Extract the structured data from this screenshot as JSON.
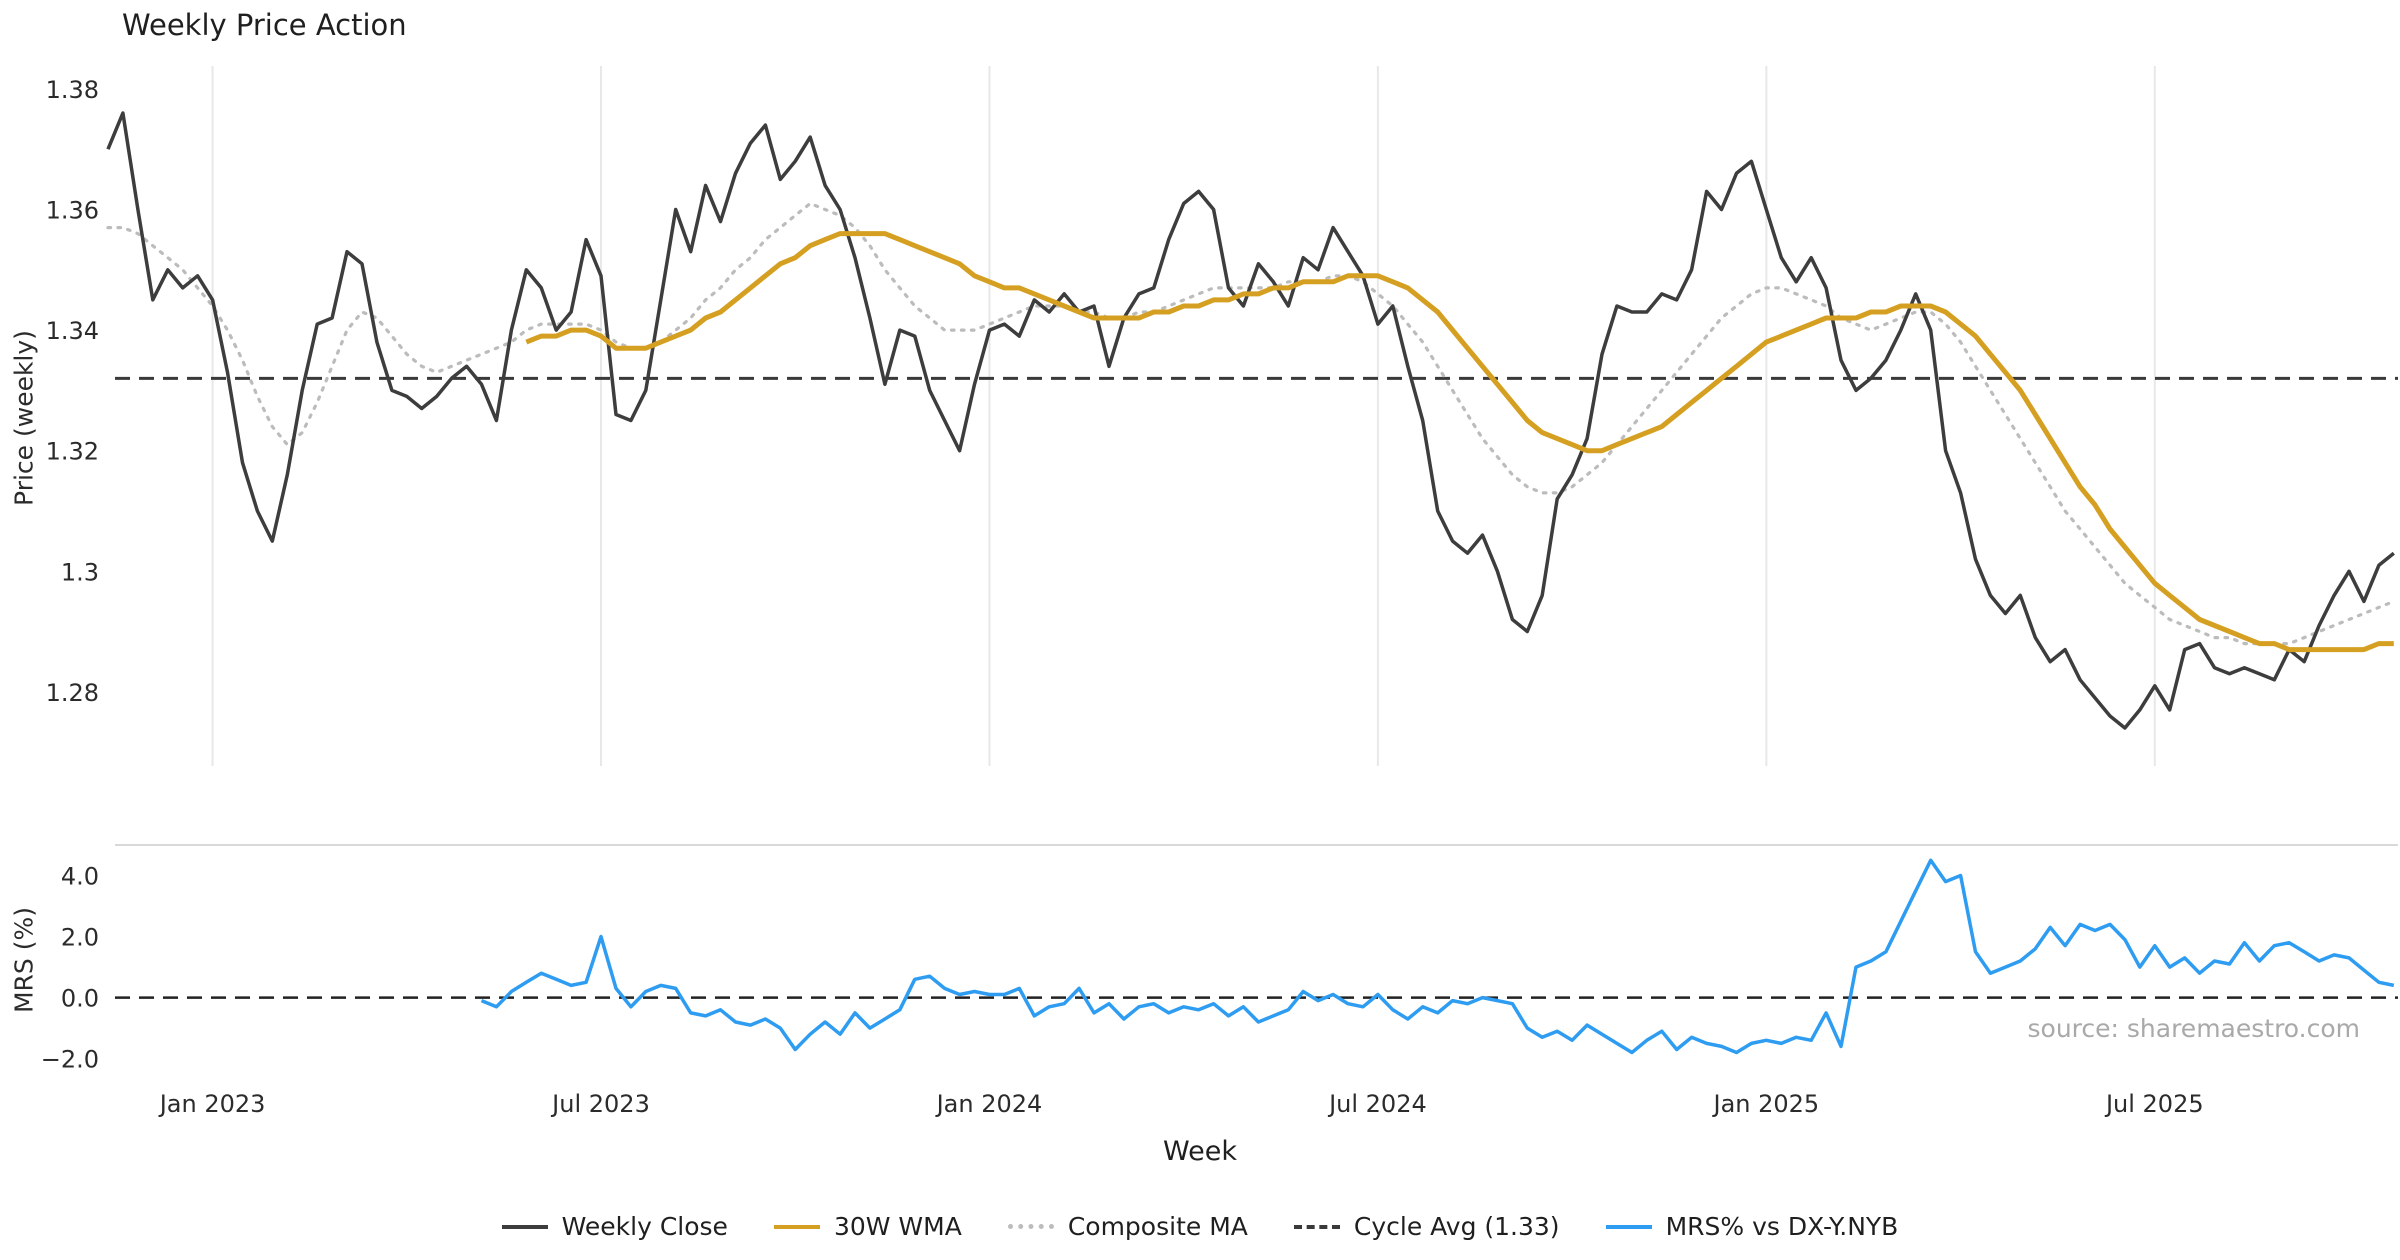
{
  "title": "Weekly Price Action",
  "source": "source: sharemaestro.com",
  "colors": {
    "close": "#3d3d3d",
    "wma": "#d5a021",
    "composite": "#bcbcbc",
    "cycle": "#3a3a3a",
    "mrs": "#2e9df1",
    "grid": "#e8e8e8",
    "separator": "#d9d9d9",
    "tick_text": "#2b2b2b",
    "source_text": "#a9a9a9"
  },
  "legend": [
    {
      "label": "Weekly Close",
      "style": "solid",
      "color": "#3d3d3d"
    },
    {
      "label": "30W WMA",
      "style": "solid",
      "color": "#d5a021"
    },
    {
      "label": "Composite MA",
      "style": "dotted",
      "color": "#bcbcbc"
    },
    {
      "label": "Cycle Avg (1.33)",
      "style": "dashed",
      "color": "#3a3a3a"
    },
    {
      "label": "MRS% vs DX-Y.NYB",
      "style": "solid",
      "color": "#2e9df1"
    }
  ],
  "chart_data": [
    {
      "type": "line",
      "panel": "price",
      "title": "Weekly Price Action",
      "xlabel": "Week",
      "ylabel": "Price (weekly)",
      "x_unit": "week_index",
      "ylim": [
        1.2677,
        1.3838
      ],
      "grid": "vertical-only",
      "legend_position": "bottom-center",
      "yticks": [
        {
          "v": 1.28,
          "label": "1.28"
        },
        {
          "v": 1.3,
          "label": "1.3"
        },
        {
          "v": 1.32,
          "label": "1.32"
        },
        {
          "v": 1.34,
          "label": "1.34"
        },
        {
          "v": 1.36,
          "label": "1.36"
        },
        {
          "v": 1.38,
          "label": "1.38"
        }
      ],
      "xticks": [
        {
          "i": 7,
          "label": "Jan 2023"
        },
        {
          "i": 33,
          "label": "Jul 2023"
        },
        {
          "i": 59,
          "label": "Jan 2024"
        },
        {
          "i": 85,
          "label": "Jul 2024"
        },
        {
          "i": 111,
          "label": "Jan 2025"
        },
        {
          "i": 137,
          "label": "Jul 2025"
        }
      ],
      "hline": {
        "value": 1.332,
        "label": "Cycle Avg (1.33)",
        "style": "dashed",
        "color": "#3a3a3a",
        "width": 3
      },
      "series": [
        {
          "name": "Weekly Close",
          "color": "#3d3d3d",
          "line_style": "solid",
          "width": 3.5,
          "values": [
            1.37,
            1.376,
            1.36,
            1.345,
            1.35,
            1.347,
            1.349,
            1.345,
            1.333,
            1.318,
            1.31,
            1.305,
            1.316,
            1.33,
            1.341,
            1.342,
            1.353,
            1.351,
            1.338,
            1.33,
            1.329,
            1.327,
            1.329,
            1.332,
            1.334,
            1.331,
            1.325,
            1.34,
            1.35,
            1.347,
            1.34,
            1.343,
            1.355,
            1.349,
            1.326,
            1.325,
            1.33,
            1.345,
            1.36,
            1.353,
            1.364,
            1.358,
            1.366,
            1.371,
            1.374,
            1.365,
            1.368,
            1.372,
            1.364,
            1.36,
            1.352,
            1.342,
            1.331,
            1.34,
            1.339,
            1.33,
            1.325,
            1.32,
            1.331,
            1.34,
            1.341,
            1.339,
            1.345,
            1.343,
            1.346,
            1.343,
            1.344,
            1.334,
            1.342,
            1.346,
            1.347,
            1.355,
            1.361,
            1.363,
            1.36,
            1.347,
            1.344,
            1.351,
            1.348,
            1.344,
            1.352,
            1.35,
            1.357,
            1.353,
            1.349,
            1.341,
            1.344,
            1.334,
            1.325,
            1.31,
            1.305,
            1.303,
            1.306,
            1.3,
            1.292,
            1.29,
            1.296,
            1.312,
            1.316,
            1.322,
            1.336,
            1.344,
            1.343,
            1.343,
            1.346,
            1.345,
            1.35,
            1.363,
            1.36,
            1.366,
            1.368,
            1.36,
            1.352,
            1.348,
            1.352,
            1.347,
            1.335,
            1.33,
            1.332,
            1.335,
            1.34,
            1.346,
            1.34,
            1.32,
            1.313,
            1.302,
            1.296,
            1.293,
            1.296,
            1.289,
            1.285,
            1.287,
            1.282,
            1.279,
            1.276,
            1.274,
            1.277,
            1.281,
            1.277,
            1.287,
            1.288,
            1.284,
            1.283,
            1.284,
            1.283,
            1.282,
            1.287,
            1.285,
            1.291,
            1.296,
            1.3,
            1.295,
            1.301,
            1.303
          ]
        },
        {
          "name": "30W WMA",
          "color": "#d5a021",
          "line_style": "solid",
          "width": 5,
          "values": [
            null,
            null,
            null,
            null,
            null,
            null,
            null,
            null,
            null,
            null,
            null,
            null,
            null,
            null,
            null,
            null,
            null,
            null,
            null,
            null,
            null,
            null,
            null,
            null,
            null,
            null,
            null,
            null,
            1.338,
            1.339,
            1.339,
            1.34,
            1.34,
            1.339,
            1.337,
            1.337,
            1.337,
            1.338,
            1.339,
            1.34,
            1.342,
            1.343,
            1.345,
            1.347,
            1.349,
            1.351,
            1.352,
            1.354,
            1.355,
            1.356,
            1.356,
            1.356,
            1.356,
            1.355,
            1.354,
            1.353,
            1.352,
            1.351,
            1.349,
            1.348,
            1.347,
            1.347,
            1.346,
            1.345,
            1.344,
            1.343,
            1.342,
            1.342,
            1.342,
            1.342,
            1.343,
            1.343,
            1.344,
            1.344,
            1.345,
            1.345,
            1.346,
            1.346,
            1.347,
            1.347,
            1.348,
            1.348,
            1.348,
            1.349,
            1.349,
            1.349,
            1.348,
            1.347,
            1.345,
            1.343,
            1.34,
            1.337,
            1.334,
            1.331,
            1.328,
            1.325,
            1.323,
            1.322,
            1.321,
            1.32,
            1.32,
            1.321,
            1.322,
            1.323,
            1.324,
            1.326,
            1.328,
            1.33,
            1.332,
            1.334,
            1.336,
            1.338,
            1.339,
            1.34,
            1.341,
            1.342,
            1.342,
            1.342,
            1.343,
            1.343,
            1.344,
            1.344,
            1.344,
            1.343,
            1.341,
            1.339,
            1.336,
            1.333,
            1.33,
            1.326,
            1.322,
            1.318,
            1.314,
            1.311,
            1.307,
            1.304,
            1.301,
            1.298,
            1.296,
            1.294,
            1.292,
            1.291,
            1.29,
            1.289,
            1.288,
            1.288,
            1.287,
            1.287,
            1.287,
            1.287,
            1.287,
            1.287,
            1.288,
            1.288
          ]
        },
        {
          "name": "Composite MA",
          "color": "#bcbcbc",
          "line_style": "dotted",
          "width": 3.2,
          "values": [
            1.357,
            1.357,
            1.356,
            1.354,
            1.352,
            1.35,
            1.347,
            1.344,
            1.34,
            1.335,
            1.329,
            1.324,
            1.321,
            1.323,
            1.328,
            1.334,
            1.34,
            1.343,
            1.342,
            1.339,
            1.336,
            1.334,
            1.333,
            1.334,
            1.335,
            1.336,
            1.337,
            1.338,
            1.34,
            1.341,
            1.341,
            1.341,
            1.341,
            1.34,
            1.338,
            1.337,
            1.337,
            1.338,
            1.34,
            1.342,
            1.345,
            1.347,
            1.35,
            1.352,
            1.355,
            1.357,
            1.359,
            1.361,
            1.36,
            1.359,
            1.357,
            1.354,
            1.35,
            1.347,
            1.344,
            1.342,
            1.34,
            1.34,
            1.34,
            1.341,
            1.342,
            1.343,
            1.344,
            1.344,
            1.344,
            1.343,
            1.343,
            1.342,
            1.342,
            1.343,
            1.343,
            1.344,
            1.345,
            1.346,
            1.347,
            1.347,
            1.347,
            1.347,
            1.347,
            1.348,
            1.348,
            1.348,
            1.349,
            1.349,
            1.348,
            1.346,
            1.344,
            1.341,
            1.338,
            1.334,
            1.33,
            1.326,
            1.322,
            1.319,
            1.316,
            1.314,
            1.313,
            1.313,
            1.314,
            1.316,
            1.318,
            1.321,
            1.324,
            1.327,
            1.33,
            1.333,
            1.336,
            1.339,
            1.342,
            1.344,
            1.346,
            1.347,
            1.347,
            1.346,
            1.345,
            1.344,
            1.342,
            1.341,
            1.34,
            1.341,
            1.342,
            1.343,
            1.343,
            1.341,
            1.338,
            1.334,
            1.33,
            1.326,
            1.322,
            1.318,
            1.314,
            1.31,
            1.307,
            1.304,
            1.301,
            1.298,
            1.296,
            1.294,
            1.292,
            1.291,
            1.29,
            1.289,
            1.289,
            1.288,
            1.288,
            1.288,
            1.288,
            1.289,
            1.29,
            1.291,
            1.292,
            1.293,
            1.294,
            1.295
          ]
        }
      ]
    },
    {
      "type": "line",
      "panel": "mrs",
      "ylabel": "MRS (%)",
      "ylim": [
        -2.7,
        5.0
      ],
      "yticks": [
        {
          "v": -2.0,
          "label": "−2.0"
        },
        {
          "v": 0.0,
          "label": "0.0"
        },
        {
          "v": 2.0,
          "label": "2.0"
        },
        {
          "v": 4.0,
          "label": "4.0"
        }
      ],
      "hline": {
        "value": 0,
        "style": "dashed",
        "color": "#222222",
        "width": 2.5
      },
      "series": [
        {
          "name": "MRS% vs DX-Y.NYB",
          "color": "#2e9df1",
          "line_style": "solid",
          "width": 3.5,
          "values": [
            null,
            null,
            null,
            null,
            null,
            null,
            null,
            null,
            null,
            null,
            null,
            null,
            null,
            null,
            null,
            null,
            null,
            null,
            null,
            null,
            null,
            null,
            null,
            null,
            null,
            -0.1,
            -0.3,
            0.2,
            0.5,
            0.8,
            0.6,
            0.4,
            0.5,
            2.0,
            0.3,
            -0.3,
            0.2,
            0.4,
            0.3,
            -0.5,
            -0.6,
            -0.4,
            -0.8,
            -0.9,
            -0.7,
            -1.0,
            -1.7,
            -1.2,
            -0.8,
            -1.2,
            -0.5,
            -1.0,
            -0.7,
            -0.4,
            0.6,
            0.7,
            0.3,
            0.1,
            0.2,
            0.1,
            0.1,
            0.3,
            -0.6,
            -0.3,
            -0.2,
            0.3,
            -0.5,
            -0.2,
            -0.7,
            -0.3,
            -0.2,
            -0.5,
            -0.3,
            -0.4,
            -0.2,
            -0.6,
            -0.3,
            -0.8,
            -0.6,
            -0.4,
            0.2,
            -0.1,
            0.1,
            -0.2,
            -0.3,
            0.1,
            -0.4,
            -0.7,
            -0.3,
            -0.5,
            -0.1,
            -0.2,
            0.0,
            -0.1,
            -0.2,
            -1.0,
            -1.3,
            -1.1,
            -1.4,
            -0.9,
            -1.2,
            -1.5,
            -1.8,
            -1.4,
            -1.1,
            -1.7,
            -1.3,
            -1.5,
            -1.6,
            -1.8,
            -1.5,
            -1.4,
            -1.5,
            -1.3,
            -1.4,
            -0.5,
            -1.6,
            1.0,
            1.2,
            1.5,
            2.5,
            3.5,
            4.5,
            3.8,
            4.0,
            1.5,
            0.8,
            1.0,
            1.2,
            1.6,
            2.3,
            1.7,
            2.4,
            2.2,
            2.4,
            1.9,
            1.0,
            1.7,
            1.0,
            1.3,
            0.8,
            1.2,
            1.1,
            1.8,
            1.2,
            1.7,
            1.8,
            1.5,
            1.2,
            1.4,
            1.3,
            0.9,
            0.5,
            0.4
          ]
        }
      ]
    }
  ]
}
